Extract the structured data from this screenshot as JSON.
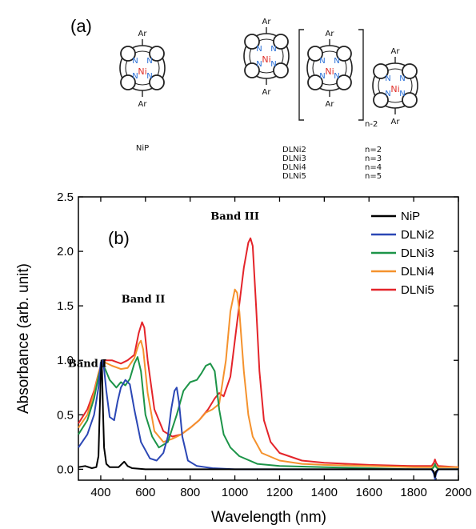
{
  "panel_a": {
    "label": "(a)",
    "single": {
      "name": "NiP",
      "ar": "Ar",
      "metal": "Ni",
      "nitrogen": "N"
    },
    "oligomer_names": [
      "DLNi2",
      "DLNi3",
      "DLNi4",
      "DLNi5"
    ],
    "oligomer_n": [
      "n=2",
      "n=3",
      "n=4",
      "n=5"
    ],
    "bracket_label": "n-2"
  },
  "colors": {
    "NiP": "#000000",
    "DLNi2": "#2b47b5",
    "DLNi3": "#1c9448",
    "DLNi4": "#f5922d",
    "DLNi5": "#e4242a",
    "nitrogen": "#2a6fd6",
    "nickel": "#e0302a"
  },
  "chart_data": {
    "type": "line",
    "panel_label": "(b)",
    "title": "",
    "xlabel": "Wavelength (nm)",
    "ylabel": "Absorbance (arb. unit)",
    "xlim": [
      300,
      2000
    ],
    "ylim": [
      -0.1,
      2.5
    ],
    "xticks": [
      400,
      600,
      800,
      1000,
      1200,
      1400,
      1600,
      1800,
      2000
    ],
    "yticks": [
      0.0,
      0.5,
      1.0,
      1.5,
      2.0,
      2.5
    ],
    "xtick_labels": [
      "400",
      "600",
      "800",
      "1000",
      "1200",
      "1400",
      "1600",
      "1800",
      "2000"
    ],
    "ytick_labels": [
      "0.0",
      "0.5",
      "1.0",
      "1.5",
      "2.0",
      "2.5"
    ],
    "legend_position": "top-right",
    "grid": false,
    "annotations": [
      {
        "text": "Band I",
        "x": 340,
        "y": 0.94
      },
      {
        "text": "Band II",
        "x": 590,
        "y": 1.53
      },
      {
        "text": "Band III",
        "x": 1000,
        "y": 2.29
      }
    ],
    "series": [
      {
        "name": "NiP",
        "x": [
          300,
          330,
          360,
          380,
          390,
          395,
          400,
          403,
          406,
          410,
          415,
          425,
          440,
          480,
          505,
          520,
          540,
          600,
          800,
          1200,
          1600,
          1880,
          1890,
          1895,
          1900,
          1910,
          2000
        ],
        "y": [
          0.02,
          0.03,
          0.01,
          0.02,
          0.12,
          0.5,
          0.85,
          1.0,
          0.9,
          0.55,
          0.2,
          0.05,
          0.02,
          0.02,
          0.07,
          0.03,
          0.01,
          0.0,
          0.0,
          0.0,
          0.0,
          0.0,
          -0.02,
          -0.07,
          -0.02,
          0.0,
          0.0
        ]
      },
      {
        "name": "DLNi2",
        "x": [
          300,
          340,
          370,
          390,
          400,
          408,
          415,
          425,
          440,
          460,
          475,
          490,
          510,
          530,
          550,
          580,
          620,
          650,
          680,
          700,
          715,
          730,
          740,
          750,
          765,
          790,
          830,
          900,
          1000,
          1200,
          1400,
          1600,
          1880,
          1890,
          1895,
          1900,
          1910,
          2000
        ],
        "y": [
          0.2,
          0.32,
          0.5,
          0.75,
          0.98,
          1.0,
          0.92,
          0.72,
          0.48,
          0.45,
          0.62,
          0.75,
          0.82,
          0.78,
          0.55,
          0.25,
          0.1,
          0.08,
          0.15,
          0.3,
          0.55,
          0.72,
          0.75,
          0.62,
          0.3,
          0.08,
          0.03,
          0.01,
          0.0,
          0.0,
          0.0,
          0.0,
          0.0,
          -0.04,
          -0.09,
          -0.04,
          0.0,
          0.0
        ]
      },
      {
        "name": "DLNi3",
        "x": [
          300,
          340,
          370,
          390,
          405,
          420,
          440,
          470,
          490,
          510,
          530,
          550,
          565,
          580,
          600,
          630,
          660,
          700,
          740,
          770,
          800,
          830,
          850,
          870,
          890,
          910,
          930,
          950,
          980,
          1020,
          1100,
          1200,
          1400,
          1600,
          1800,
          1880,
          1890,
          1895,
          1900,
          1910,
          2000
        ],
        "y": [
          0.32,
          0.45,
          0.65,
          0.85,
          0.97,
          0.92,
          0.82,
          0.75,
          0.8,
          0.77,
          0.83,
          0.97,
          1.03,
          0.9,
          0.5,
          0.3,
          0.2,
          0.25,
          0.5,
          0.72,
          0.8,
          0.82,
          0.88,
          0.95,
          0.97,
          0.9,
          0.55,
          0.32,
          0.2,
          0.12,
          0.05,
          0.03,
          0.02,
          0.01,
          0.0,
          0.0,
          0.02,
          0.05,
          0.02,
          0.0,
          0.0
        ]
      },
      {
        "name": "DLNi4",
        "x": [
          300,
          340,
          370,
          390,
          405,
          420,
          450,
          490,
          520,
          550,
          570,
          580,
          590,
          610,
          640,
          680,
          720,
          760,
          800,
          840,
          870,
          900,
          930,
          960,
          980,
          1000,
          1010,
          1020,
          1040,
          1060,
          1080,
          1120,
          1200,
          1300,
          1400,
          1600,
          1800,
          1880,
          1890,
          1895,
          1900,
          1910,
          2000
        ],
        "y": [
          0.38,
          0.5,
          0.7,
          0.88,
          0.98,
          0.98,
          0.95,
          0.92,
          0.93,
          1.02,
          1.15,
          1.18,
          1.1,
          0.7,
          0.35,
          0.25,
          0.28,
          0.32,
          0.38,
          0.45,
          0.52,
          0.55,
          0.6,
          1.0,
          1.45,
          1.65,
          1.62,
          1.45,
          0.9,
          0.5,
          0.3,
          0.15,
          0.08,
          0.05,
          0.04,
          0.03,
          0.02,
          0.02,
          0.03,
          0.04,
          0.03,
          0.02,
          0.02
        ]
      },
      {
        "name": "DLNi5",
        "x": [
          300,
          340,
          370,
          390,
          405,
          420,
          450,
          490,
          520,
          550,
          570,
          585,
          595,
          610,
          640,
          680,
          720,
          760,
          800,
          840,
          880,
          910,
          930,
          950,
          980,
          1010,
          1040,
          1060,
          1070,
          1080,
          1095,
          1110,
          1130,
          1160,
          1200,
          1300,
          1400,
          1600,
          1800,
          1880,
          1890,
          1895,
          1900,
          1910,
          2000
        ],
        "y": [
          0.42,
          0.55,
          0.72,
          0.88,
          0.98,
          1.0,
          1.0,
          0.97,
          1.0,
          1.05,
          1.25,
          1.35,
          1.3,
          1.0,
          0.55,
          0.35,
          0.3,
          0.32,
          0.38,
          0.45,
          0.55,
          0.65,
          0.7,
          0.67,
          0.85,
          1.35,
          1.85,
          2.08,
          2.12,
          2.05,
          1.5,
          0.9,
          0.45,
          0.25,
          0.15,
          0.08,
          0.06,
          0.04,
          0.03,
          0.03,
          0.06,
          0.09,
          0.06,
          0.03,
          0.02
        ]
      }
    ]
  }
}
